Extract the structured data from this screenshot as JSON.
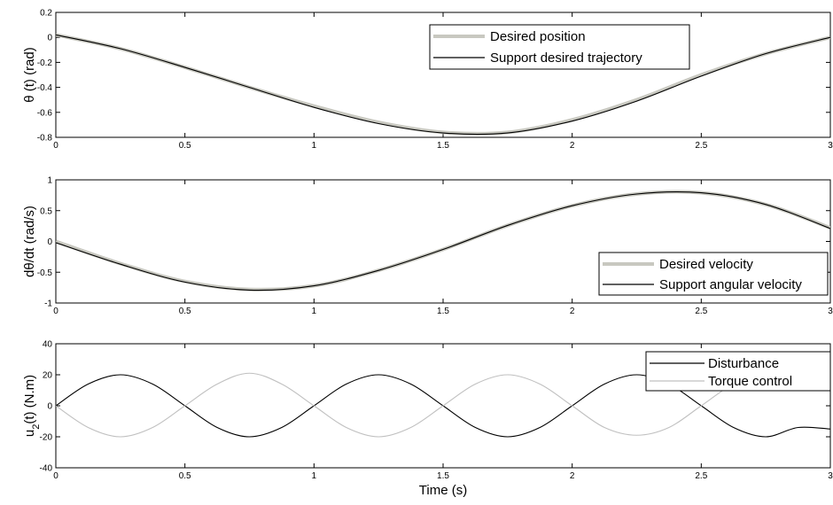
{
  "chart_data": [
    {
      "type": "line",
      "xlabel": "",
      "ylabel": "θ (t) (rad)",
      "xlim": [
        0,
        3
      ],
      "ylim": [
        -0.8,
        0.2
      ],
      "xticks": [
        0,
        0.5,
        1,
        1.5,
        2,
        2.5,
        3
      ],
      "yticks": [
        -0.8,
        -0.6,
        -0.4,
        -0.2,
        0,
        0.2
      ],
      "x": [
        0,
        0.25,
        0.5,
        0.75,
        1,
        1.25,
        1.5,
        1.75,
        2,
        2.25,
        2.5,
        2.75,
        3
      ],
      "series": [
        {
          "name": "Desired position",
          "color": "#c8c8c0",
          "values": [
            0.02,
            -0.09,
            -0.24,
            -0.4,
            -0.55,
            -0.68,
            -0.76,
            -0.76,
            -0.66,
            -0.5,
            -0.3,
            -0.13,
            0.0
          ]
        },
        {
          "name": "Support desired trajectory",
          "color": "#000000",
          "values": [
            0.02,
            -0.09,
            -0.24,
            -0.4,
            -0.56,
            -0.69,
            -0.765,
            -0.765,
            -0.67,
            -0.51,
            -0.31,
            -0.13,
            0.0
          ]
        }
      ],
      "legend_position": "top-right",
      "grid": false
    },
    {
      "type": "line",
      "xlabel": "",
      "ylabel": "dθ/dt (rad/s)",
      "xlim": [
        0,
        3
      ],
      "ylim": [
        -1,
        1
      ],
      "xticks": [
        0,
        0.5,
        1,
        1.5,
        2,
        2.5,
        3
      ],
      "yticks": [
        -1,
        -0.5,
        0,
        0.5,
        1
      ],
      "x": [
        0,
        0.25,
        0.5,
        0.75,
        1,
        1.25,
        1.5,
        1.75,
        2,
        2.25,
        2.5,
        2.75,
        3
      ],
      "series": [
        {
          "name": "Desired velocity",
          "color": "#c8c8c0",
          "values": [
            0.0,
            -0.36,
            -0.65,
            -0.78,
            -0.72,
            -0.47,
            -0.13,
            0.26,
            0.58,
            0.77,
            0.79,
            0.6,
            0.22
          ]
        },
        {
          "name": "Support angular velocity",
          "color": "#000000",
          "values": [
            -0.02,
            -0.37,
            -0.66,
            -0.79,
            -0.72,
            -0.47,
            -0.13,
            0.26,
            0.58,
            0.77,
            0.79,
            0.6,
            0.21
          ]
        }
      ],
      "legend_position": "bottom-right",
      "grid": false
    },
    {
      "type": "line",
      "xlabel": "Time (s)",
      "ylabel": "u₂(t) (N.m)",
      "ylabel_main": "u",
      "ylabel_sub": "2",
      "ylabel_rest": "(t) (N.m)",
      "xlim": [
        0,
        3
      ],
      "ylim": [
        -40,
        40
      ],
      "xticks": [
        0,
        0.5,
        1,
        1.5,
        2,
        2.5,
        3
      ],
      "yticks": [
        -40,
        -20,
        0,
        20,
        40
      ],
      "x": [
        0,
        0.125,
        0.25,
        0.375,
        0.5,
        0.625,
        0.75,
        0.875,
        1,
        1.125,
        1.25,
        1.375,
        1.5,
        1.625,
        1.75,
        1.875,
        2,
        2.125,
        2.25,
        2.375,
        2.5,
        2.625,
        2.75,
        2.875,
        3
      ],
      "series": [
        {
          "name": "Disturbance",
          "color": "#000000",
          "values": [
            0,
            14,
            20,
            14,
            0,
            -14,
            -20,
            -14,
            0,
            14,
            20,
            14,
            0,
            -14,
            -20,
            -14,
            0,
            14,
            20,
            14,
            0,
            -14,
            -20,
            -14,
            -15
          ]
        },
        {
          "name": "Torque control",
          "color": "#c0c0c0",
          "values": [
            0,
            -14,
            -20,
            -14,
            0,
            14,
            21,
            14,
            0,
            -14,
            -20,
            -14,
            0,
            14,
            20,
            14,
            0,
            -14,
            -19,
            -14,
            0,
            14,
            20,
            14,
            15
          ]
        }
      ],
      "legend_position": "top-right",
      "grid": false
    }
  ]
}
